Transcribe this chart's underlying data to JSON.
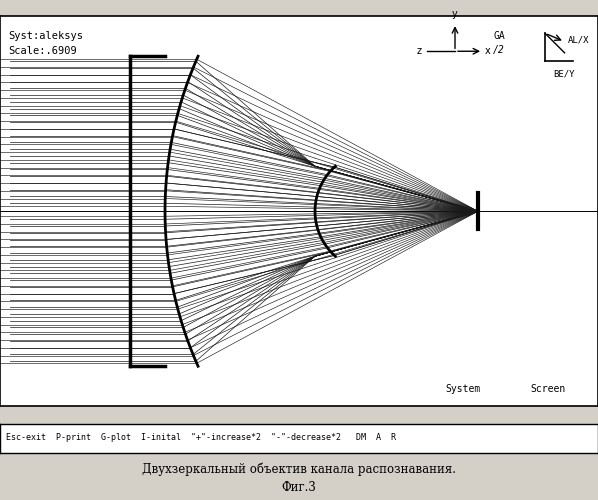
{
  "title_line1": "Двухзеркальный объектив канала распознавания.",
  "title_line2": "Фиг.3",
  "status_bar": "Esc-exit  P-print  G-plot  I-inital  \"+\"-increase*2  \"-\"-decrease*2   DM  A  R",
  "syst_label": "Syst:aleksys",
  "scale_label": "Scale:.6909",
  "bg_color": "#d4d0c8",
  "plot_bg": "#ffffff",
  "ray_color": "#1a1a1a",
  "mirror_color": "#000000",
  "axis_color": "#000000",
  "border_color": "#000000",
  "n_rays": 22,
  "n_offaxis": 20
}
